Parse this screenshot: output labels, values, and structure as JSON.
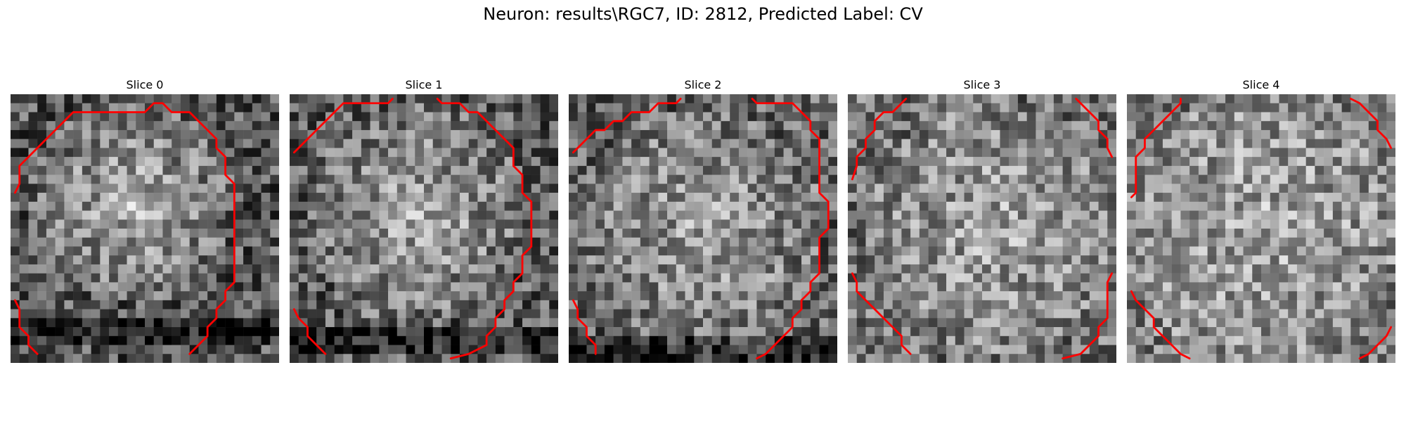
{
  "figure": {
    "title": "Neuron: results\\RGC7, ID: 2812, Predicted Label: CV",
    "contour_color": "#ff0000"
  },
  "panels": [
    {
      "title": "Slice 0",
      "seed": 11,
      "base": 0.4,
      "center": [
        0.45,
        0.4
      ],
      "radius": 0.38,
      "boost": 0.3,
      "dark_band": [
        0.82,
        0.92
      ]
    },
    {
      "title": "Slice 1",
      "seed": 23,
      "base": 0.42,
      "center": [
        0.48,
        0.45
      ],
      "radius": 0.42,
      "boost": 0.26,
      "dark_band": [
        0.86,
        0.96
      ]
    },
    {
      "title": "Slice 2",
      "seed": 37,
      "base": 0.45,
      "center": [
        0.5,
        0.5
      ],
      "radius": 0.45,
      "boost": 0.18,
      "dark_band": [
        0.9,
        0.99
      ]
    },
    {
      "title": "Slice 3",
      "seed": 41,
      "base": 0.5,
      "center": [
        0.55,
        0.5
      ],
      "radius": 0.48,
      "boost": 0.14,
      "dark_band": [
        0.0,
        0.0
      ]
    },
    {
      "title": "Slice 4",
      "seed": 53,
      "base": 0.55,
      "center": [
        0.5,
        0.5
      ],
      "radius": 0.5,
      "boost": 0.1,
      "dark_band": [
        0.0,
        0.0
      ]
    }
  ]
}
